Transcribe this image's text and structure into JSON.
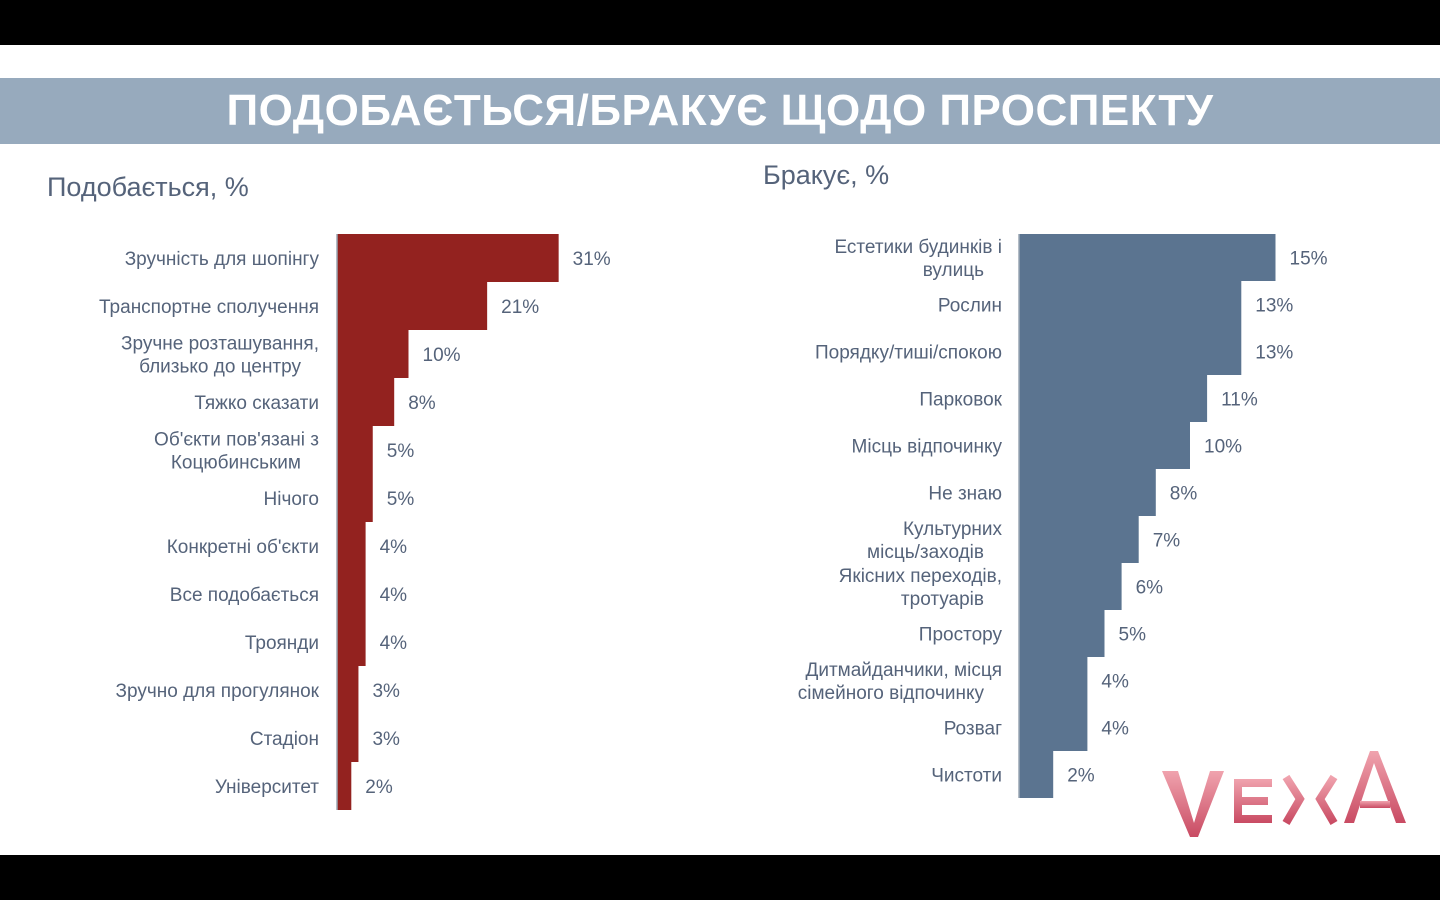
{
  "title": "ПОДОБАЄТЬСЯ/БРАКУЄ ЩОДО ПРОСПЕКТУ",
  "brand": "VEЖA",
  "colors": {
    "like": "#93221f",
    "lack": "#5b7490",
    "banner": "#97aabd",
    "text": "#55637a"
  },
  "chart_data": [
    {
      "type": "bar",
      "orientation": "horizontal",
      "title": "Подобається, %",
      "categories": [
        "Зручність для шопінгу",
        "Транспортне сполучення",
        "Зручне розташування, близько до центру",
        "Тяжко сказати",
        "Об'єкти пов'язані з Коцюбинським",
        "Нічого",
        "Конкретні об'єкти",
        "Все подобається",
        "Троянди",
        "Зручно для прогулянок",
        "Стадіон",
        "Університет"
      ],
      "values": [
        31,
        21,
        10,
        8,
        5,
        5,
        4,
        4,
        4,
        3,
        3,
        2
      ],
      "value_labels": [
        "31%",
        "21%",
        "10%",
        "8%",
        "5%",
        "5%",
        "4%",
        "4%",
        "4%",
        "3%",
        "3%",
        "2%"
      ]
    },
    {
      "type": "bar",
      "orientation": "horizontal",
      "title": "Бракує, %",
      "categories": [
        "Естетики будинків і вулиць",
        "Рослин",
        "Порядку/тиші/спокою",
        "Парковок",
        "Місць відпочинку",
        "Не знаю",
        "Культурних місць/заходів",
        "Якісних переходів, тротуарів",
        "Простору",
        "Дитмайданчики, місця сімейного відпочинку",
        "Розваг",
        "Чистоти"
      ],
      "values": [
        15,
        13,
        13,
        11,
        10,
        8,
        7,
        6,
        5,
        4,
        4,
        2
      ],
      "value_labels": [
        "15%",
        "13%",
        "13%",
        "11%",
        "10%",
        "8%",
        "7%",
        "6%",
        "5%",
        "4%",
        "4%",
        "2%"
      ]
    }
  ]
}
